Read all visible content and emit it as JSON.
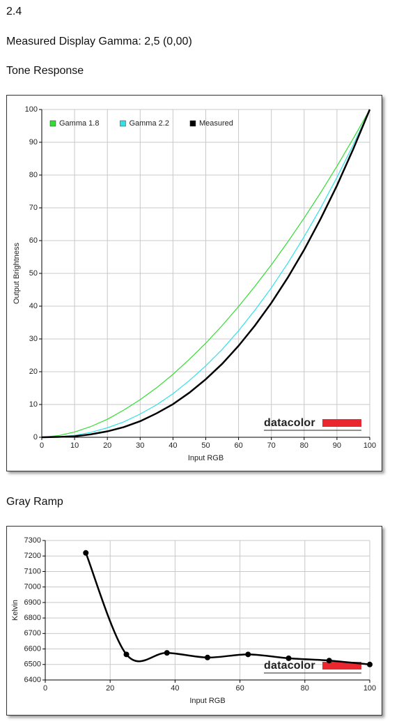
{
  "header": {
    "section": "2.4",
    "gamma": "Measured Display Gamma: 2,5 (0,00)"
  },
  "chart_data": [
    {
      "type": "line",
      "title": "Tone Response",
      "xlabel": "Input RGB",
      "ylabel": "Output Brightness",
      "x": [
        0,
        5,
        10,
        15,
        20,
        25,
        30,
        35,
        40,
        45,
        50,
        55,
        60,
        65,
        70,
        75,
        80,
        85,
        90,
        95,
        100
      ],
      "series": [
        {
          "name": "Gamma 1.8",
          "color": "#33dd33",
          "values": [
            0,
            0.5,
            1.6,
            3.3,
            5.5,
            8.3,
            11.5,
            15.1,
            19.2,
            23.8,
            28.7,
            34.1,
            39.9,
            46.1,
            52.6,
            59.6,
            66.9,
            74.6,
            82.7,
            91.2,
            100
          ]
        },
        {
          "name": "Gamma 2.2",
          "color": "#30e0ea",
          "values": [
            0,
            0.1,
            0.6,
            1.5,
            2.9,
            4.7,
            7.1,
            9.9,
            13.3,
            17.3,
            21.8,
            26.8,
            32.5,
            38.8,
            45.6,
            53.1,
            61.2,
            69.9,
            79.3,
            89.3,
            100
          ]
        },
        {
          "name": "Measured",
          "color": "#000000",
          "values": [
            0,
            0.1,
            0.3,
            0.9,
            1.8,
            3.1,
            4.9,
            7.3,
            10.1,
            13.6,
            17.7,
            22.4,
            27.9,
            34.1,
            41.0,
            48.7,
            57.2,
            66.6,
            76.8,
            88.0,
            100
          ]
        }
      ],
      "xlim": [
        0,
        100
      ],
      "xticks": [
        0,
        10,
        20,
        30,
        40,
        50,
        60,
        70,
        80,
        90,
        100
      ],
      "ylim": [
        0,
        100
      ],
      "yticks": [
        0,
        10,
        20,
        30,
        40,
        50,
        60,
        70,
        80,
        90,
        100
      ],
      "grid": true,
      "legend": "upper left",
      "smooth": false,
      "markers": false,
      "logo": "datacolor"
    },
    {
      "type": "line",
      "title": "Gray Ramp",
      "xlabel": "Input RGB",
      "ylabel": "Kelvin",
      "x": [
        12.5,
        25,
        37.5,
        50,
        62.5,
        75,
        87.5,
        100
      ],
      "series": [
        {
          "color": "#000000",
          "values": [
            7220,
            6565,
            6575,
            6545,
            6565,
            6540,
            6525,
            6500
          ]
        }
      ],
      "xlim": [
        0,
        100
      ],
      "xticks": [
        0,
        20,
        40,
        60,
        80,
        100
      ],
      "ylim": [
        6400,
        7300
      ],
      "yticks": [
        6400,
        6500,
        6600,
        6700,
        6800,
        6900,
        7000,
        7100,
        7200,
        7300
      ],
      "grid": true,
      "smooth": true,
      "markers": true,
      "logo": "datacolor"
    }
  ]
}
